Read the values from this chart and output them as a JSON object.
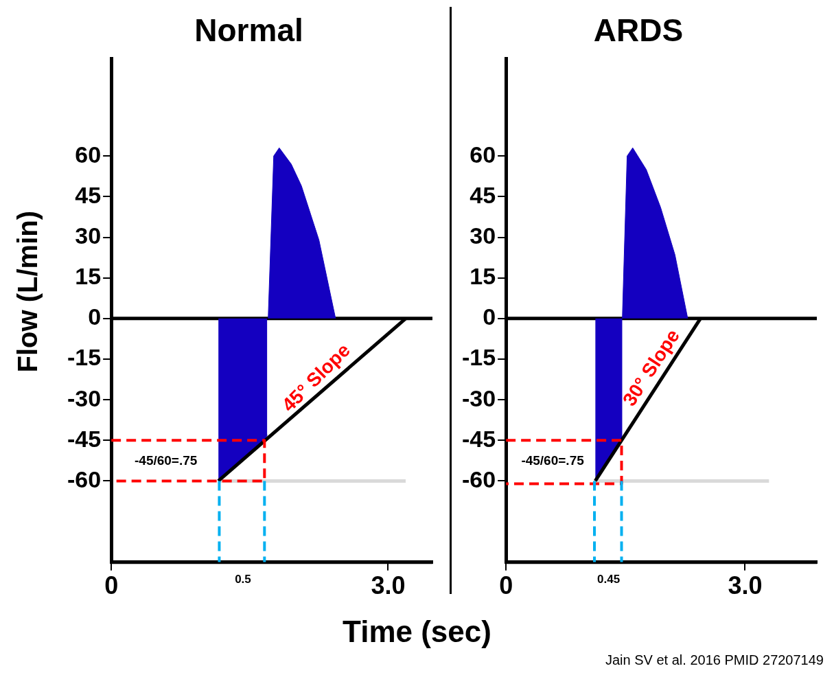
{
  "chart_data": [
    {
      "type": "line",
      "title": "Normal",
      "xlabel": "Time (sec)",
      "ylabel": "Flow (L/min)",
      "xlim": [
        0,
        3.48
      ],
      "xticks": [
        0,
        {
          "value": 3,
          "label": "3.0"
        }
      ],
      "ylim": [
        -90,
        96
      ],
      "yticks": [
        -60,
        -45,
        -30,
        -15,
        0,
        15,
        30,
        45,
        60
      ],
      "series": [
        {
          "type": "area",
          "color": "#1400c0",
          "x": [
            1.16,
            1.66,
            1.69
          ],
          "values": [
            -60,
            -45,
            -43
          ]
        },
        {
          "type": "area",
          "color": "#1400c0",
          "x": [
            1.7,
            1.76,
            1.82,
            1.95,
            2.06,
            2.25,
            2.43
          ],
          "values": [
            0,
            60,
            63,
            57,
            49,
            29,
            0
          ]
        },
        {
          "color": "#d9d9d9",
          "x": [
            1.16,
            3.19
          ],
          "values": [
            -60,
            -60
          ]
        },
        {
          "color": "#000000",
          "x": [
            1.16,
            3.19
          ],
          "values": [
            -60,
            0
          ]
        },
        {
          "color": "#ff0000",
          "line_style": "dashed",
          "x": [
            0,
            1.66,
            1.66,
            0
          ],
          "values": [
            -45,
            -45,
            -60,
            -60
          ]
        },
        {
          "color": "#00b0f0",
          "line_style": "dashed",
          "x": [
            1.17,
            1.17
          ],
          "values": [
            -60,
            -90
          ]
        },
        {
          "color": "#00b0f0",
          "line_style": "dashed",
          "x": [
            1.66,
            1.66
          ],
          "values": [
            -60,
            -90
          ]
        }
      ],
      "ref_lines": [
        {
          "axis": "y",
          "value": 0,
          "color": "#000000"
        },
        {
          "axis": "y",
          "value": -90,
          "color": "#000000"
        }
      ],
      "annotations": [
        "-45/60=.75",
        "45° Slope",
        "0.5"
      ]
    },
    {
      "type": "line",
      "title": "ARDS",
      "xlim": [
        0,
        3.9
      ],
      "xticks": [
        0,
        {
          "value": 3,
          "label": "3.0"
        }
      ],
      "ylim": [
        -90,
        96
      ],
      "yticks": [
        -60,
        -45,
        -30,
        -15,
        0,
        15,
        30,
        45,
        60
      ],
      "series": [
        {
          "type": "area",
          "color": "#1400c0",
          "x": [
            1.12,
            1.45,
            1.46
          ],
          "values": [
            -60,
            -45,
            -44
          ]
        },
        {
          "type": "area",
          "color": "#1400c0",
          "x": [
            1.46,
            1.52,
            1.59,
            1.76,
            1.94,
            2.12,
            2.28
          ],
          "values": [
            0,
            60,
            63,
            55,
            41,
            23.5,
            0
          ]
        },
        {
          "color": "#d9d9d9",
          "x": [
            1.12,
            3.3
          ],
          "values": [
            -60,
            -60
          ]
        },
        {
          "color": "#000000",
          "x": [
            1.12,
            2.44
          ],
          "values": [
            -60,
            0
          ]
        },
        {
          "color": "#ff0000",
          "line_style": "dashed",
          "x": [
            0,
            1.45,
            1.45,
            0
          ],
          "values": [
            -45,
            -45,
            -61,
            -61
          ]
        },
        {
          "color": "#00b0f0",
          "line_style": "dashed",
          "x": [
            1.11,
            1.11
          ],
          "values": [
            -60,
            -90
          ]
        },
        {
          "color": "#00b0f0",
          "line_style": "dashed",
          "x": [
            1.45,
            1.45
          ],
          "values": [
            -60,
            -90
          ]
        }
      ],
      "ref_lines": [
        {
          "axis": "y",
          "value": 0,
          "color": "#000000"
        },
        {
          "axis": "y",
          "value": -90,
          "color": "#000000"
        }
      ],
      "annotations": [
        "-45/60=.75",
        "30° Slope",
        "0.45",
        "Jain SV et al.  2016  PMID 27207149"
      ]
    }
  ]
}
